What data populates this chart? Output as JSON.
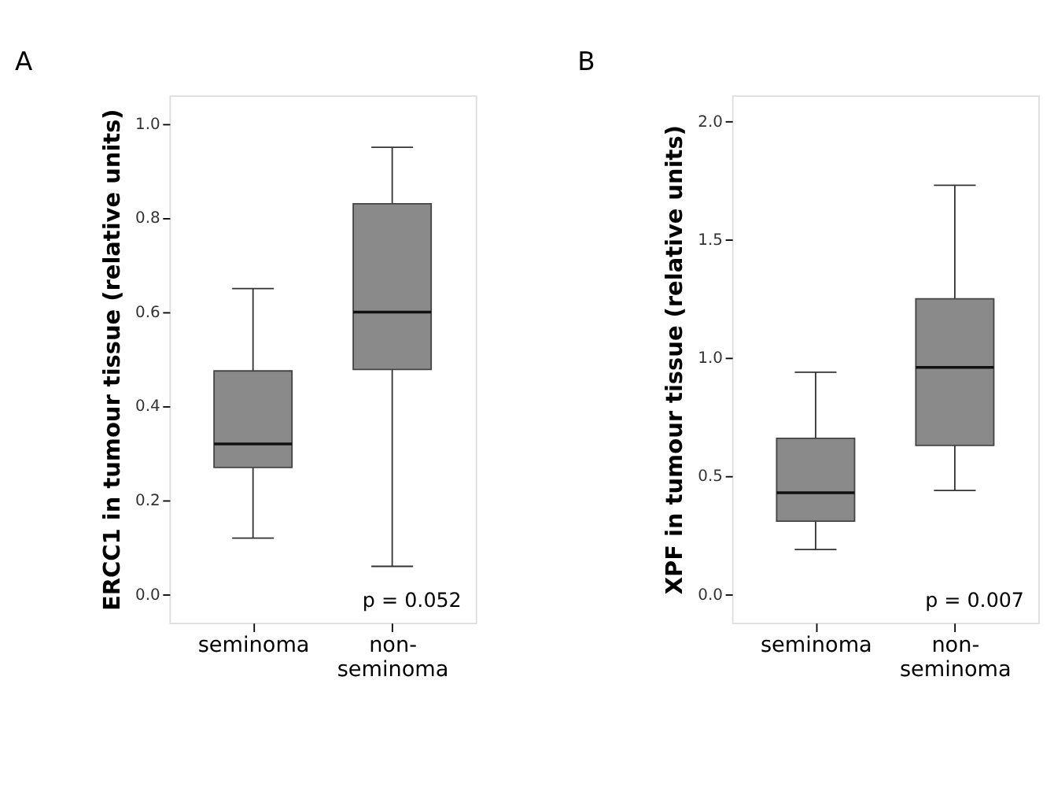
{
  "chart_data": [
    {
      "type": "box",
      "title": "A",
      "ylabel": "ERCC1 in tumour tissue (relative units)",
      "categories": [
        "seminoma",
        "non-\nseminoma"
      ],
      "color": "#8a8a8a",
      "ylim": [
        -0.06,
        1.06
      ],
      "yticks": [
        {
          "value": 0,
          "label": "0.0"
        },
        0.2,
        0.4,
        0.6,
        0.8,
        {
          "value": 1,
          "label": "1.0"
        }
      ],
      "grid": false,
      "annotations": [
        "p = 0.052"
      ],
      "boxes": [
        {
          "low": 0.12,
          "q1": 0.27,
          "median": 0.32,
          "q3": 0.475,
          "high": 0.65
        },
        {
          "low": 0.06,
          "q1": 0.478,
          "median": 0.6,
          "q3": 0.83,
          "high": 0.95
        }
      ]
    },
    {
      "type": "box",
      "title": "B",
      "ylabel": "XPF in tumour tissue (relative units)",
      "categories": [
        "seminoma",
        "non-\nseminoma"
      ],
      "color": "#8a8a8a",
      "ylim": [
        -0.12,
        2.11
      ],
      "yticks": [
        {
          "value": 0,
          "label": "0.0"
        },
        0.5,
        {
          "value": 1,
          "label": "1.0"
        },
        1.5,
        {
          "value": 2,
          "label": "2.0"
        }
      ],
      "grid": false,
      "annotations": [
        "p = 0.007"
      ],
      "boxes": [
        {
          "low": 0.19,
          "q1": 0.31,
          "median": 0.43,
          "q3": 0.66,
          "high": 0.94
        },
        {
          "low": 0.44,
          "q1": 0.63,
          "median": 0.96,
          "q3": 1.25,
          "high": 1.73
        }
      ]
    }
  ]
}
